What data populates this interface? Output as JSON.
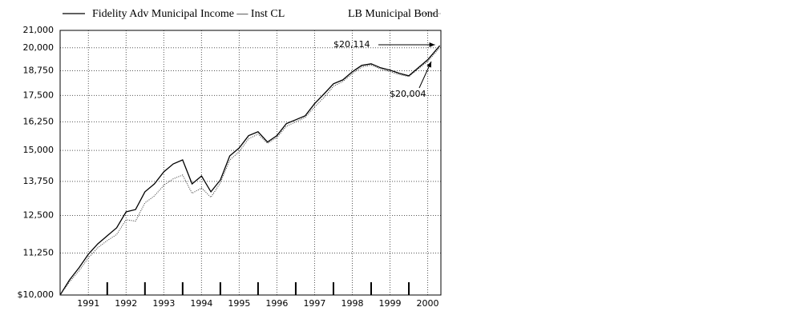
{
  "chart_data": {
    "type": "line",
    "log_scale_y": true,
    "grid": true,
    "x": [
      1990.75,
      1991.0,
      1991.25,
      1991.5,
      1991.75,
      1992.0,
      1992.25,
      1992.5,
      1992.75,
      1993.0,
      1993.25,
      1993.5,
      1993.75,
      1994.0,
      1994.25,
      1994.5,
      1994.75,
      1995.0,
      1995.25,
      1995.5,
      1995.75,
      1996.0,
      1996.25,
      1996.5,
      1996.75,
      1997.0,
      1997.25,
      1997.5,
      1997.75,
      1998.0,
      1998.25,
      1998.5,
      1998.75,
      1999.0,
      1999.25,
      1999.5,
      1999.75,
      2000.0,
      2000.25,
      2000.5,
      2000.82
    ],
    "series": [
      {
        "name": "Fidelity Adv Municipal Income — Inst CL",
        "color": "#000000",
        "style": "solid",
        "values": [
          10000,
          10435,
          10792,
          11213,
          11543,
          11806,
          12072,
          12624,
          12709,
          13357,
          13655,
          14124,
          14442,
          14604,
          13655,
          13961,
          13357,
          13808,
          14770,
          15106,
          15631,
          15806,
          15354,
          15631,
          16166,
          16346,
          16530,
          17103,
          17572,
          18078,
          18281,
          18700,
          19036,
          19121,
          18908,
          18781,
          18613,
          18488,
          18908,
          19336,
          20114
        ]
      },
      {
        "name": "LB Municipal Bond",
        "color": "#333333",
        "style": "dotted",
        "values": [
          10000,
          10380,
          10700,
          11100,
          11420,
          11650,
          11850,
          12350,
          12300,
          12950,
          13200,
          13600,
          13850,
          14000,
          13300,
          13500,
          13150,
          13700,
          14600,
          14950,
          15500,
          15700,
          15300,
          15550,
          16050,
          16250,
          16450,
          16950,
          17400,
          17950,
          18200,
          18600,
          18950,
          19050,
          18850,
          18700,
          18550,
          18450,
          18850,
          19250,
          20004
        ]
      }
    ],
    "annotations": [
      {
        "text": "$20,114"
      },
      {
        "text": "$20,004"
      }
    ],
    "xlim": [
      1990.75,
      2000.85
    ],
    "xticks": [
      {
        "value": 1991.5,
        "label": "1991"
      },
      {
        "value": 1992.5,
        "label": "1992"
      },
      {
        "value": 1993.5,
        "label": "1993"
      },
      {
        "value": 1994.5,
        "label": "1994"
      },
      {
        "value": 1995.5,
        "label": "1995"
      },
      {
        "value": 1996.5,
        "label": "1996"
      },
      {
        "value": 1997.5,
        "label": "1997"
      },
      {
        "value": 1998.5,
        "label": "1998"
      },
      {
        "value": 1999.5,
        "label": "1999"
      },
      {
        "value": 2000.5,
        "label": "2000"
      }
    ],
    "ylim": [
      10000,
      21000
    ],
    "yticks": [
      {
        "value": 10000,
        "label": "$10,000"
      },
      {
        "value": 11250,
        "label": "11,250"
      },
      {
        "value": 12500,
        "label": "12,500"
      },
      {
        "value": 13750,
        "label": "13,750"
      },
      {
        "value": 15000,
        "label": "15,000"
      },
      {
        "value": 16250,
        "label": "16,250"
      },
      {
        "value": 17500,
        "label": "17,500"
      },
      {
        "value": 18750,
        "label": "18,750"
      },
      {
        "value": 20000,
        "label": "20,000"
      },
      {
        "value": 21000,
        "label": "21,000"
      }
    ]
  }
}
